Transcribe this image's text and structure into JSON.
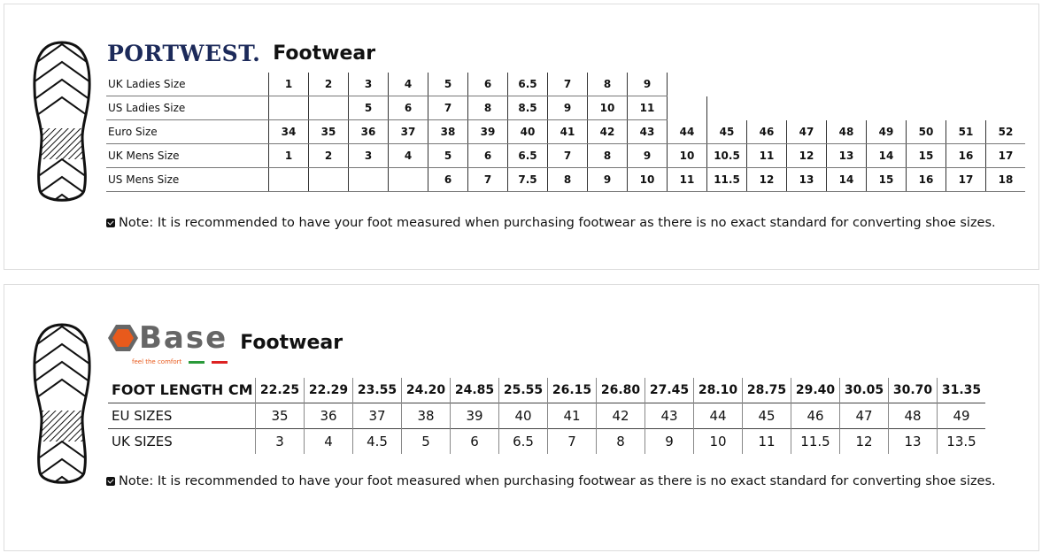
{
  "portwest": {
    "brand": "PORTWEST.",
    "title": "Footwear",
    "rows": [
      {
        "label": "UK Ladies Size",
        "values": [
          "1",
          "2",
          "3",
          "4",
          "5",
          "6",
          "6.5",
          "7",
          "8",
          "9",
          "",
          "",
          "",
          "",
          "",
          "",
          "",
          "",
          ""
        ]
      },
      {
        "label": "US Ladies Size",
        "values": [
          "",
          "",
          "5",
          "6",
          "7",
          "8",
          "8.5",
          "9",
          "10",
          "11",
          "",
          "",
          "",
          "",
          "",
          "",
          "",
          "",
          ""
        ]
      },
      {
        "label": "Euro Size",
        "values": [
          "34",
          "35",
          "36",
          "37",
          "38",
          "39",
          "40",
          "41",
          "42",
          "43",
          "44",
          "45",
          "46",
          "47",
          "48",
          "49",
          "50",
          "51",
          "52"
        ]
      },
      {
        "label": "UK Mens Size",
        "values": [
          "1",
          "2",
          "3",
          "4",
          "5",
          "6",
          "6.5",
          "7",
          "8",
          "9",
          "10",
          "10.5",
          "11",
          "12",
          "13",
          "14",
          "15",
          "16",
          "17"
        ]
      },
      {
        "label": "US Mens Size",
        "values": [
          "",
          "",
          "",
          "",
          "6",
          "7",
          "7.5",
          "8",
          "9",
          "10",
          "11",
          "11.5",
          "12",
          "13",
          "14",
          "15",
          "16",
          "17",
          "18"
        ]
      }
    ],
    "note": "Note: It is recommended to have your foot measured when purchasing footwear as there is no exact standard for converting shoe sizes."
  },
  "base": {
    "brand": "Base",
    "tagline": "feel the comfort",
    "title": "Footwear",
    "rows": [
      {
        "label": "FOOT LENGTH CM",
        "values": [
          "22.25",
          "22.29",
          "23.55",
          "24.20",
          "24.85",
          "25.55",
          "26.15",
          "26.80",
          "27.45",
          "28.10",
          "28.75",
          "29.40",
          "30.05",
          "30.70",
          "31.35"
        ]
      },
      {
        "label": "EU SIZES",
        "values": [
          "35",
          "36",
          "37",
          "38",
          "39",
          "40",
          "41",
          "42",
          "43",
          "44",
          "45",
          "46",
          "47",
          "48",
          "49"
        ]
      },
      {
        "label": "UK SIZES",
        "values": [
          "3",
          "4",
          "4.5",
          "5",
          "6",
          "6.5",
          "7",
          "8",
          "9",
          "10",
          "11",
          "11.5",
          "12",
          "13",
          "13.5"
        ]
      }
    ],
    "note": "Note: It is recommended to have your foot measured when purchasing footwear as there is no exact standard for converting shoe sizes."
  },
  "colors": {
    "portwest_navy": "#1c2a5a",
    "base_orange": "#e85a1c",
    "base_gray": "#666666"
  }
}
